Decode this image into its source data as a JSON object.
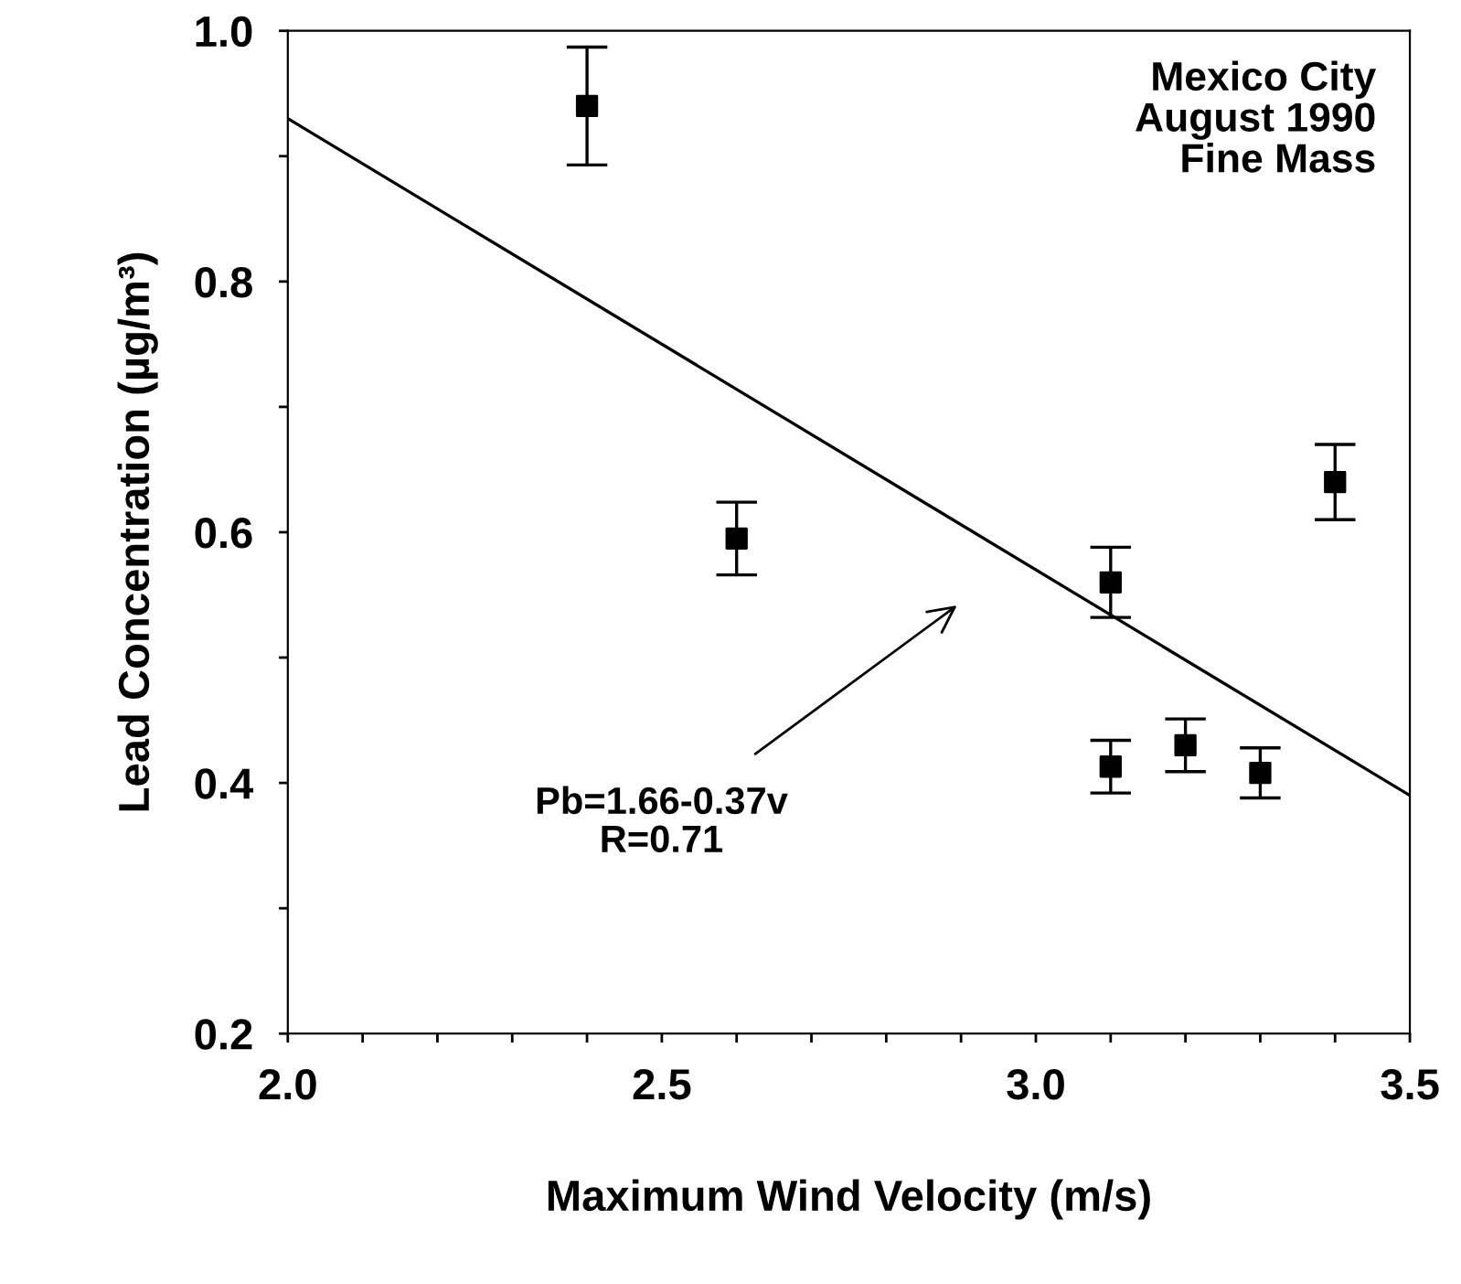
{
  "chart_data": {
    "type": "scatter",
    "xlabel": "Maximum Wind Velocity (m/s)",
    "ylabel": "Lead Concentration (µg/m³)",
    "annotations": [
      "Mexico City\nAugust 1990\nFine Mass",
      "Pb=1.66-0.37v\nR=0.71"
    ],
    "series": [
      {
        "color": "#000000",
        "marker": "square",
        "x": [
          2.4,
          2.6,
          3.1,
          3.1,
          3.2,
          3.3,
          3.4
        ],
        "values": [
          0.94,
          0.595,
          0.56,
          0.413,
          0.43,
          0.408,
          0.64
        ],
        "errors": [
          0.047,
          0.029,
          0.028,
          0.021,
          0.021,
          0.02,
          0.03
        ]
      },
      {
        "type": "line",
        "color": "#000000",
        "marker": "none",
        "line_style": "solid",
        "x": [
          2.0,
          3.5
        ],
        "values": [
          0.93,
          0.39
        ]
      }
    ],
    "xlim": [
      2.0,
      3.5
    ],
    "ylim": [
      0.2,
      1.0
    ],
    "xticks": [
      {
        "value": 2,
        "label": "2.0"
      },
      {
        "value": 2.1,
        "label": null
      },
      {
        "value": 2.2,
        "label": null
      },
      {
        "value": 2.3,
        "label": null
      },
      {
        "value": 2.4,
        "label": null
      },
      2.5,
      {
        "value": 2.6,
        "label": null
      },
      {
        "value": 2.7,
        "label": null
      },
      {
        "value": 2.8,
        "label": null
      },
      {
        "value": 2.9,
        "label": null
      },
      {
        "value": 3,
        "label": "3.0"
      },
      {
        "value": 3.1,
        "label": null
      },
      {
        "value": 3.2,
        "label": null
      },
      {
        "value": 3.3,
        "label": null
      },
      {
        "value": 3.4,
        "label": null
      },
      3.5
    ],
    "yticks": [
      0.2,
      {
        "value": 0.3,
        "label": null
      },
      0.4,
      {
        "value": 0.5,
        "label": null
      },
      0.6,
      {
        "value": 0.7,
        "label": null
      },
      0.8,
      {
        "value": 0.9,
        "label": null
      },
      {
        "value": 1,
        "label": "1.0"
      }
    ],
    "grid": false,
    "legend": false
  }
}
